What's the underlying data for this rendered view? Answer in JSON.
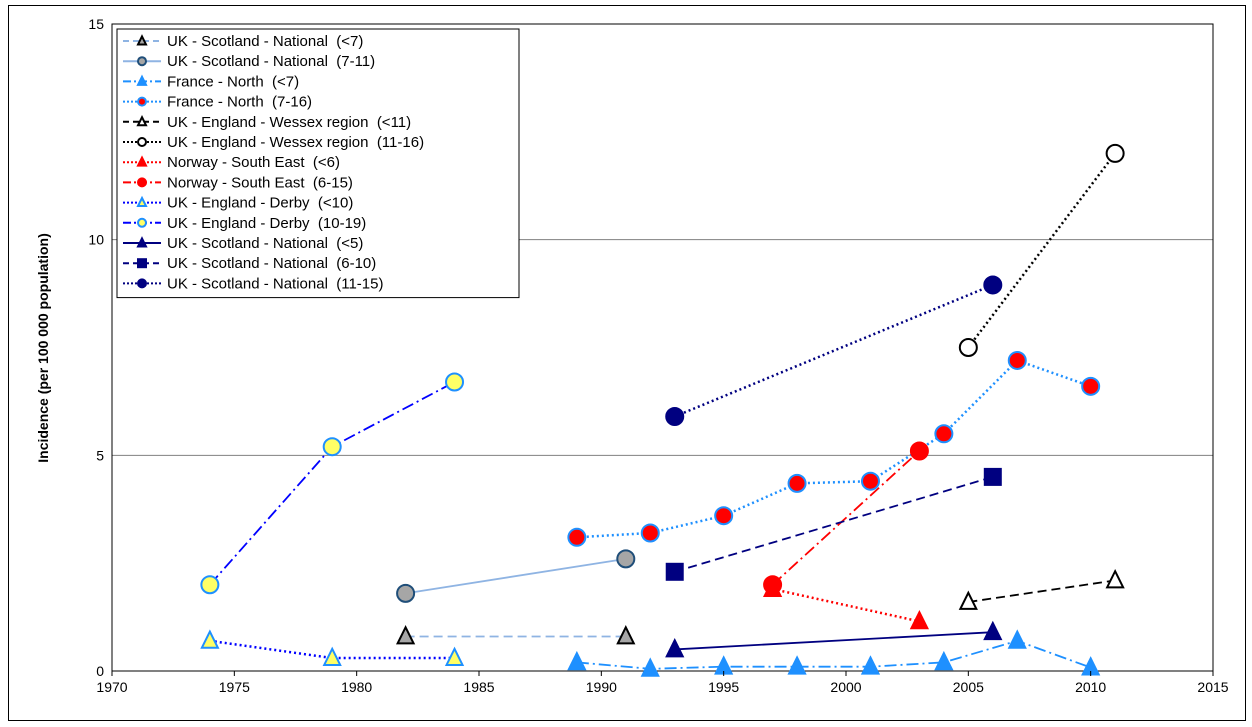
{
  "chart_data": {
    "type": "line",
    "title": "",
    "xlabel": "",
    "ylabel": "Incidence  (per 100 000 population)",
    "xlim": [
      1970,
      2015
    ],
    "ylim": [
      0,
      15
    ],
    "xticks": [
      "1970",
      "1975",
      "1980",
      "1985",
      "1990",
      "1995",
      "2000",
      "2005",
      "2010",
      "2015"
    ],
    "yticks": [
      "0",
      "5",
      "10",
      "15"
    ],
    "grid": "horizontal",
    "legend_position": "top-left",
    "series": [
      {
        "name": "UK - Scotland - National  (<7)",
        "line_color": "#8fb4e3",
        "dash": "dash",
        "marker": "triangle",
        "fill": "#a6a6a6",
        "stroke": "#000000",
        "points": [
          [
            1982,
            0.8
          ],
          [
            1991,
            0.8
          ]
        ]
      },
      {
        "name": "UK - Scotland - National  (7-11)",
        "line_color": "#8fb4e3",
        "dash": "solid",
        "marker": "circle",
        "fill": "#a6a6a6",
        "stroke": "#1f4e79",
        "points": [
          [
            1982,
            1.8
          ],
          [
            1991,
            2.6
          ]
        ]
      },
      {
        "name": "France - North  (<7)",
        "line_color": "#1e90ff",
        "dash": "dashdot",
        "marker": "triangle",
        "fill": "#1e90ff",
        "stroke": "#1e90ff",
        "points": [
          [
            1989,
            0.2
          ],
          [
            1992,
            0.05
          ],
          [
            1995,
            0.1
          ],
          [
            1998,
            0.1
          ],
          [
            2001,
            0.1
          ],
          [
            2004,
            0.2
          ],
          [
            2007,
            0.7
          ],
          [
            2010,
            0.08
          ]
        ]
      },
      {
        "name": "France - North  (7-16)",
        "line_color": "#1e90ff",
        "dash": "dot",
        "marker": "circle",
        "fill": "#ff0000",
        "stroke": "#1e90ff",
        "points": [
          [
            1989,
            3.1
          ],
          [
            1992,
            3.2
          ],
          [
            1995,
            3.6
          ],
          [
            1998,
            4.35
          ],
          [
            2001,
            4.4
          ],
          [
            2004,
            5.5
          ],
          [
            2007,
            7.2
          ],
          [
            2010,
            6.6
          ]
        ]
      },
      {
        "name": "UK - England - Wessex region  (<11)",
        "line_color": "#000000",
        "dash": "dash",
        "marker": "triangle",
        "fill": "#ffffff",
        "stroke": "#000000",
        "points": [
          [
            2005,
            1.6
          ],
          [
            2011,
            2.1
          ]
        ]
      },
      {
        "name": "UK - England - Wessex region  (11-16)",
        "line_color": "#000000",
        "dash": "dot",
        "marker": "circle",
        "fill": "#ffffff",
        "stroke": "#000000",
        "points": [
          [
            2005,
            7.5
          ],
          [
            2011,
            12.0
          ]
        ]
      },
      {
        "name": "Norway - South East  (<6)",
        "line_color": "#ff0000",
        "dash": "dot",
        "marker": "triangle",
        "fill": "#ff0000",
        "stroke": "#ff0000",
        "points": [
          [
            1997,
            1.9
          ],
          [
            2003,
            1.15
          ]
        ]
      },
      {
        "name": "Norway - South East  (6-15)",
        "line_color": "#ff0000",
        "dash": "dashdot",
        "marker": "circle",
        "fill": "#ff0000",
        "stroke": "#ff0000",
        "points": [
          [
            1997,
            2.0
          ],
          [
            2003,
            5.1
          ]
        ]
      },
      {
        "name": "UK - England - Derby  (<10)",
        "line_color": "#0000ff",
        "dash": "dot",
        "marker": "triangle",
        "fill": "#ffff66",
        "stroke": "#1e90ff",
        "points": [
          [
            1974,
            0.7
          ],
          [
            1979,
            0.3
          ],
          [
            1984,
            0.3
          ]
        ]
      },
      {
        "name": "UK - England - Derby  (10-19)",
        "line_color": "#0000ff",
        "dash": "dashdot",
        "marker": "circle",
        "fill": "#ffff66",
        "stroke": "#1e90ff",
        "points": [
          [
            1974,
            2.0
          ],
          [
            1979,
            5.2
          ],
          [
            1984,
            6.7
          ]
        ]
      },
      {
        "name": "UK - Scotland - National  (<5)",
        "line_color": "#000080",
        "dash": "solid",
        "marker": "triangle",
        "fill": "#000080",
        "stroke": "#000080",
        "points": [
          [
            1993,
            0.5
          ],
          [
            2006,
            0.9
          ]
        ]
      },
      {
        "name": "UK - Scotland - National  (6-10)",
        "line_color": "#000080",
        "dash": "dash",
        "marker": "square",
        "fill": "#000080",
        "stroke": "#000080",
        "points": [
          [
            1993,
            2.3
          ],
          [
            2006,
            4.5
          ]
        ]
      },
      {
        "name": "UK - Scotland - National  (11-15)",
        "line_color": "#000080",
        "dash": "dot",
        "marker": "circle",
        "fill": "#000080",
        "stroke": "#000080",
        "points": [
          [
            1993,
            5.9
          ],
          [
            2006,
            8.95
          ]
        ]
      }
    ]
  }
}
